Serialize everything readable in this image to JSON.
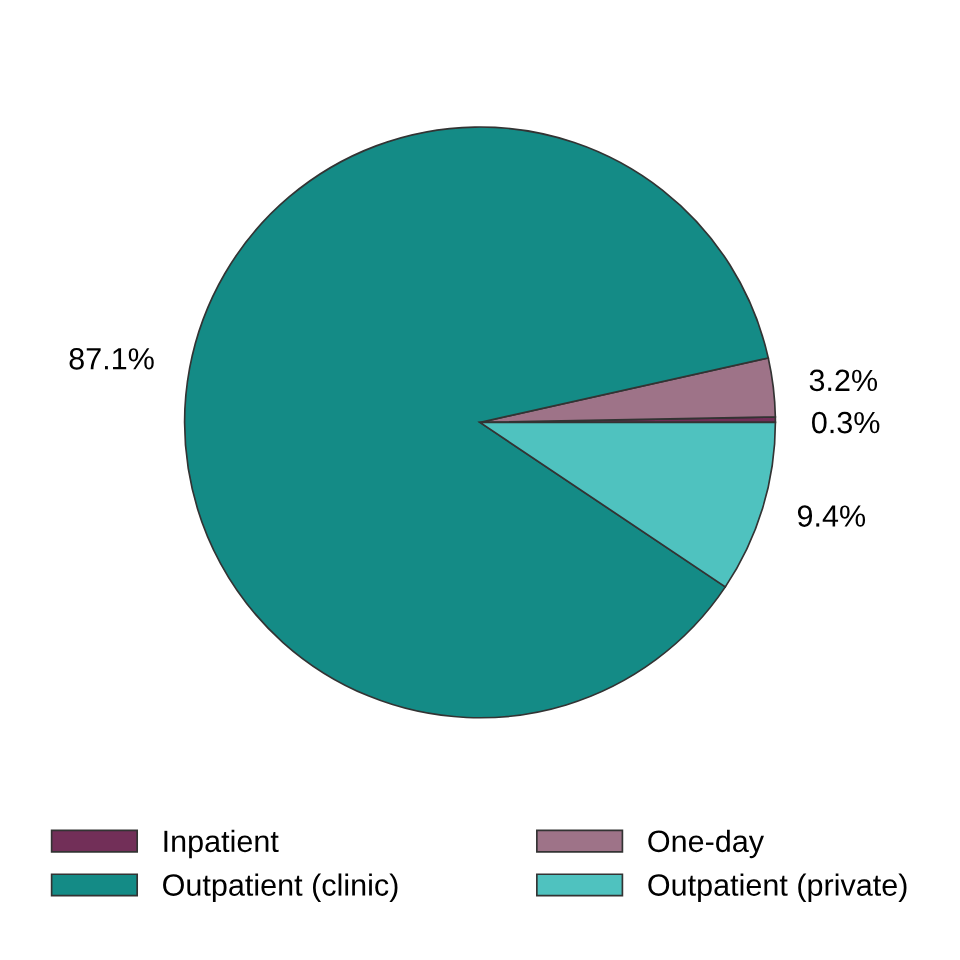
{
  "chart_data": {
    "type": "pie",
    "categories": [
      "Inpatient",
      "One-day",
      "Outpatient (clinic)",
      "Outpatient (private)"
    ],
    "values": [
      0.3,
      3.2,
      87.1,
      9.4
    ],
    "colors": [
      "#722f58",
      "#9e7388",
      "#148b86",
      "#4fc2bf"
    ],
    "value_labels": [
      "0.3%",
      "3.2%",
      "87.1%",
      "9.4%"
    ],
    "legend": "bottom"
  }
}
